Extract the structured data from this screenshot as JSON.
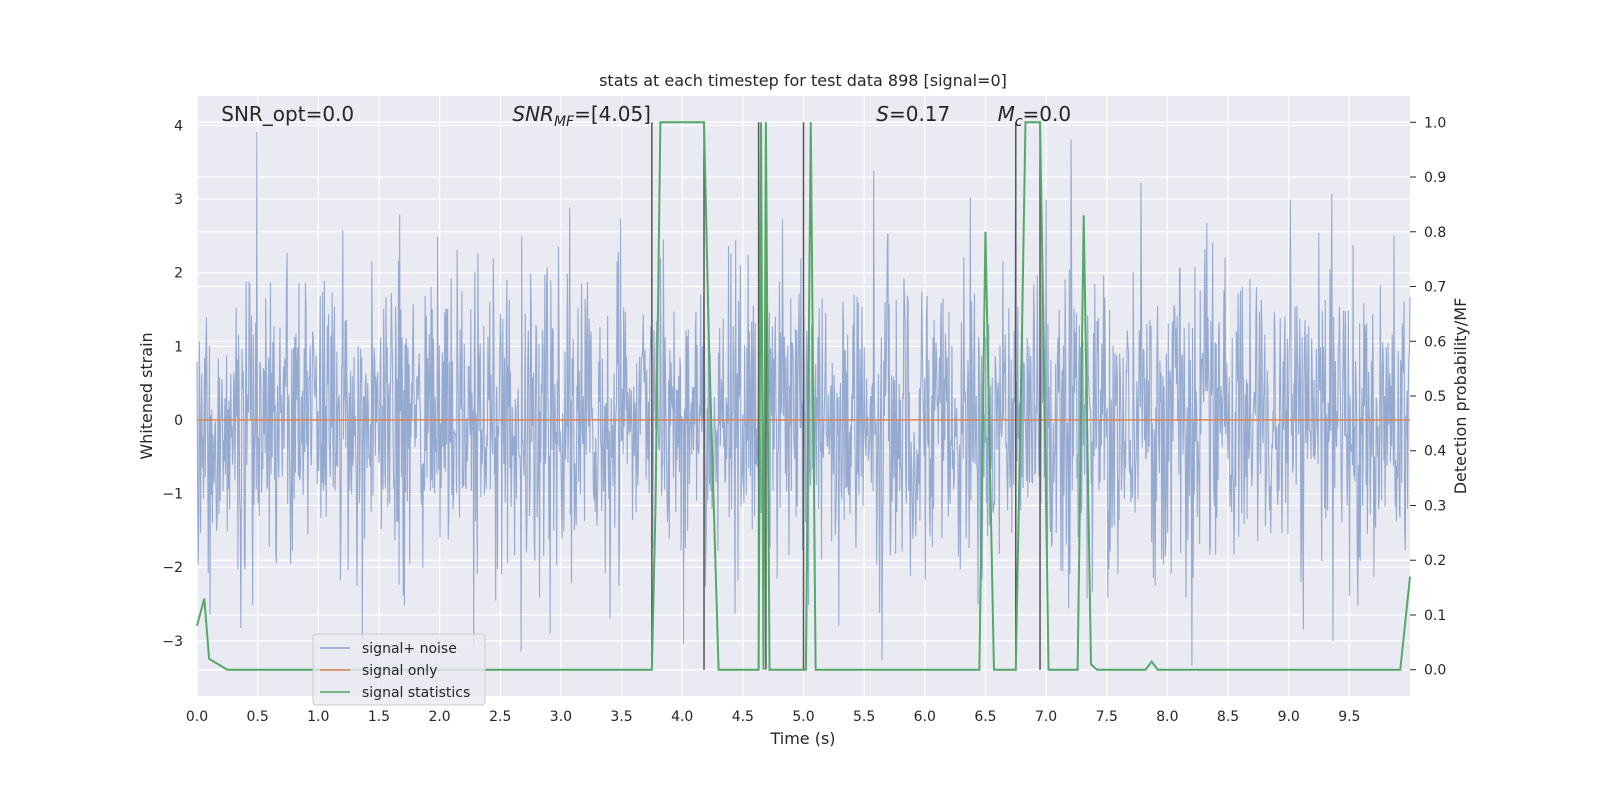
{
  "chart_data": {
    "type": "line",
    "title": "stats at each timestep for test data 898 [signal=0]",
    "xlabel": "Time (s)",
    "ylabel": "Whitened strain",
    "ylabel_right": "Detection probability/MF",
    "xlim": [
      0,
      10
    ],
    "ylim": [
      -3.75,
      4.4
    ],
    "ylim_right": [
      -0.048,
      1.048
    ],
    "grid": true,
    "legend_position": "lower-left",
    "x_ticks": [
      0.0,
      0.5,
      1.0,
      1.5,
      2.0,
      2.5,
      3.0,
      3.5,
      4.0,
      4.5,
      5.0,
      5.5,
      6.0,
      6.5,
      7.0,
      7.5,
      8.0,
      8.5,
      9.0,
      9.5
    ],
    "y_ticks": [
      -3,
      -2,
      -1,
      0,
      1,
      2,
      3,
      4
    ],
    "y_tick_labels": [
      "−3",
      "−2",
      "−1",
      "0",
      "1",
      "2",
      "3",
      "4"
    ],
    "y_right_ticks": [
      0.0,
      0.1,
      0.2,
      0.3,
      0.4,
      0.5,
      0.6,
      0.7,
      0.8,
      0.9,
      1.0
    ],
    "annotations": [
      {
        "text": "SNR_opt=0.0",
        "x": 0.2
      },
      {
        "text": "SNR",
        "sub": "MF",
        "rest": "=[4.05]",
        "x": 2.6
      },
      {
        "text": "S",
        "rest": "=0.17",
        "x": 5.6
      },
      {
        "text": "M",
        "sub": "c",
        "rest": "=0.0",
        "x": 6.6
      }
    ],
    "series": [
      {
        "name": "signal+ noise",
        "color": "#8ca3cc",
        "description_note": "whitened noise trace, approx Gaussian with unit std",
        "std": 1.0,
        "n_points": 2048
      },
      {
        "name": "signal only",
        "color": "#dd8452",
        "x": [
          0,
          10
        ],
        "y": [
          0,
          0
        ]
      },
      {
        "name": "signal statistics",
        "color": "#55a868",
        "axis": "right",
        "x": [
          0.0,
          0.06,
          0.1,
          0.25,
          3.75,
          3.78,
          3.82,
          4.18,
          4.22,
          4.3,
          4.63,
          4.65,
          4.67,
          4.69,
          4.72,
          4.75,
          4.98,
          5.02,
          5.06,
          5.1,
          6.45,
          6.5,
          6.57,
          6.75,
          6.8,
          6.83,
          6.95,
          6.98,
          7.02,
          7.26,
          7.31,
          7.37,
          7.42,
          7.82,
          7.87,
          7.92,
          9.92,
          10.0
        ],
        "y": [
          0.08,
          0.13,
          0.02,
          0.0,
          0.0,
          0.3,
          1.0,
          1.0,
          0.6,
          0.0,
          0.0,
          1.0,
          0.0,
          1.0,
          0.0,
          0.0,
          0.0,
          0.0,
          1.0,
          0.0,
          0.0,
          0.8,
          0.0,
          0.0,
          0.6,
          1.0,
          1.0,
          0.6,
          0.0,
          0.0,
          0.83,
          0.01,
          0.0,
          0.0,
          0.015,
          0.0,
          0.0,
          0.17
        ]
      }
    ],
    "vlines": [
      {
        "x": 3.75,
        "y0": 0.0,
        "y1": 1.0
      },
      {
        "x": 4.18,
        "y0": 0.0,
        "y1": 1.0
      },
      {
        "x": 4.63,
        "y0": 0.0,
        "y1": 1.0
      },
      {
        "x": 4.69,
        "y0": 0.0,
        "y1": 1.0
      },
      {
        "x": 5.0,
        "y0": 0.0,
        "y1": 1.0
      },
      {
        "x": 6.75,
        "y0": 0.0,
        "y1": 1.0
      },
      {
        "x": 6.95,
        "y0": 0.0,
        "y1": 1.0
      }
    ],
    "vline_color": "#555555"
  },
  "legend": {
    "items": [
      "signal+ noise",
      "signal only",
      "signal statistics"
    ]
  },
  "colors": {
    "plot_background": "#eaeaf2",
    "grid": "#ffffff"
  }
}
